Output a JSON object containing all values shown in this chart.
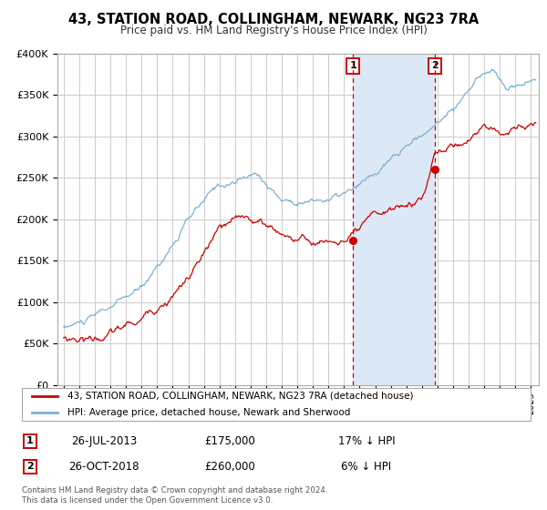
{
  "title": "43, STATION ROAD, COLLINGHAM, NEWARK, NG23 7RA",
  "subtitle": "Price paid vs. HM Land Registry's House Price Index (HPI)",
  "background_color": "#ffffff",
  "plot_bg_color": "#ffffff",
  "grid_color": "#cccccc",
  "hpi_fill_color": "#dce8f5",
  "red_line_color": "#cc0000",
  "blue_line_color": "#7ab0d4",
  "ylim": [
    0,
    400000
  ],
  "yticks": [
    0,
    50000,
    100000,
    150000,
    200000,
    250000,
    300000,
    350000,
    400000
  ],
  "ytick_labels": [
    "£0",
    "£50K",
    "£100K",
    "£150K",
    "£200K",
    "£250K",
    "£300K",
    "£350K",
    "£400K"
  ],
  "xlim_start": 1994.6,
  "xlim_end": 2025.5,
  "marker1_x": 2013.57,
  "marker1_y": 175000,
  "marker2_x": 2018.82,
  "marker2_y": 260000,
  "marker1_label": "1",
  "marker2_label": "2",
  "marker1_date": "26-JUL-2013",
  "marker1_price": "£175,000",
  "marker1_hpi": "17% ↓ HPI",
  "marker2_date": "26-OCT-2018",
  "marker2_price": "£260,000",
  "marker2_hpi": "6% ↓ HPI",
  "legend_line1": "43, STATION ROAD, COLLINGHAM, NEWARK, NG23 7RA (detached house)",
  "legend_line2": "HPI: Average price, detached house, Newark and Sherwood",
  "footer1": "Contains HM Land Registry data © Crown copyright and database right 2024.",
  "footer2": "This data is licensed under the Open Government Licence v3.0."
}
